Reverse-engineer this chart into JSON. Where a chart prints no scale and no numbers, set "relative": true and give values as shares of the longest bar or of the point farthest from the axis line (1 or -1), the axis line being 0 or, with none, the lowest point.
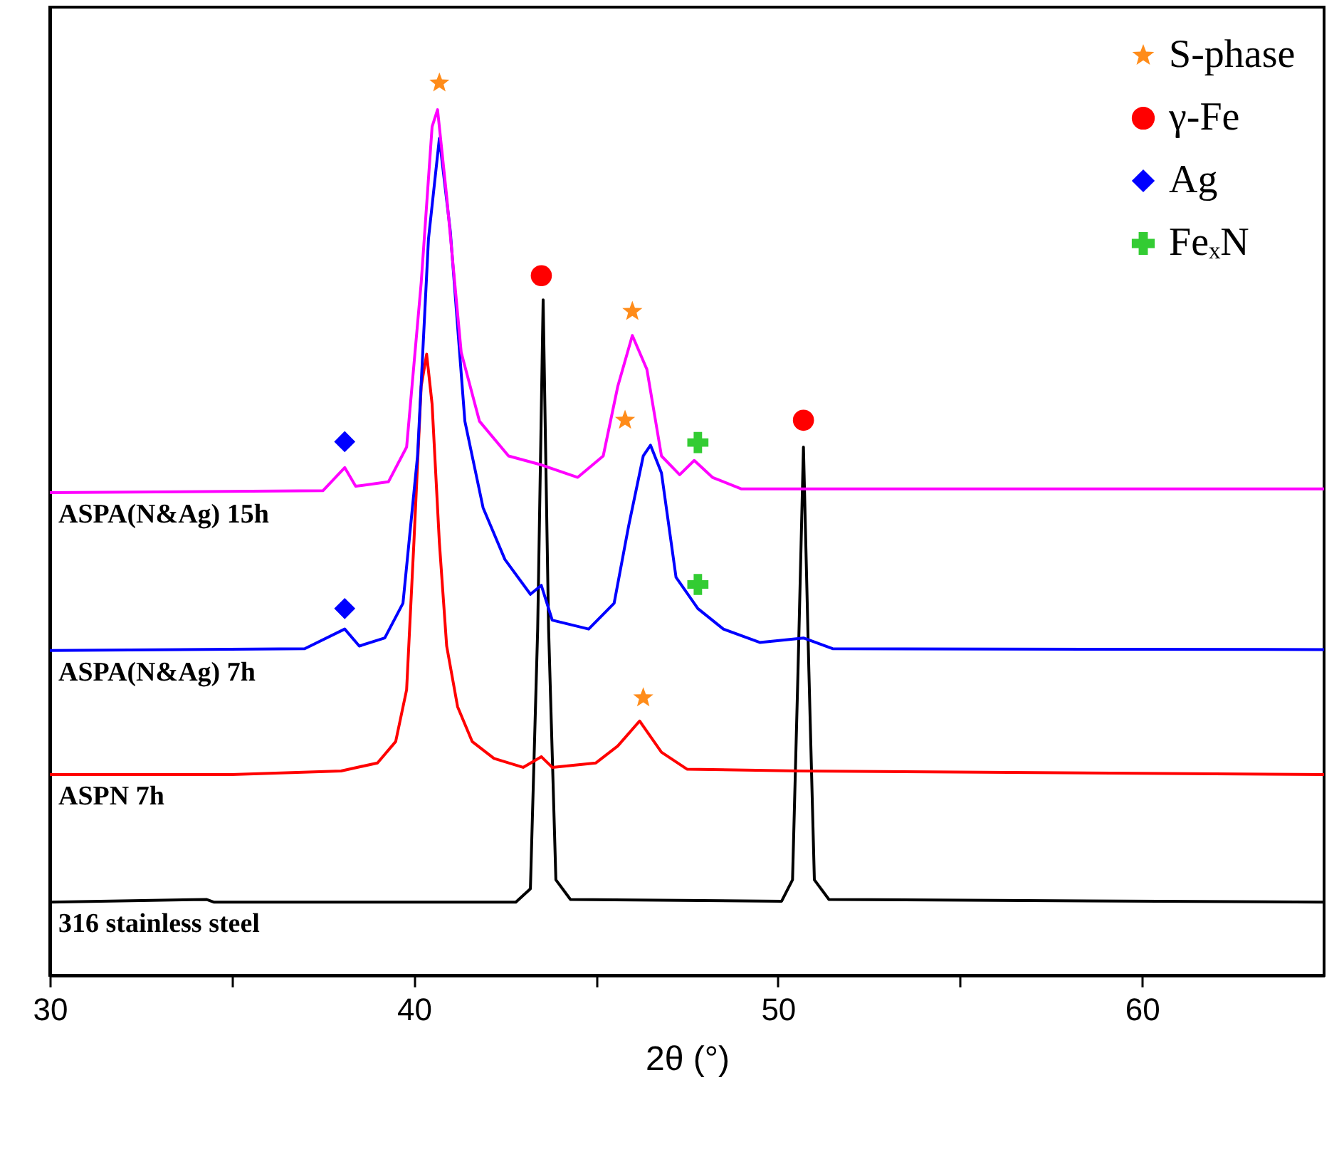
{
  "chart_data": {
    "type": "line",
    "relative": true,
    "xlabel": "2θ (°)",
    "xlim": [
      30,
      65
    ],
    "xticks": [
      30,
      {
        "value": 35,
        "label": null
      },
      40,
      {
        "value": 45,
        "label": null
      },
      50,
      {
        "value": 55,
        "label": null
      },
      60
    ],
    "tick_labels": "x",
    "legend": "top right",
    "grid": false,
    "series": [
      {
        "name": "316 stainless steel",
        "color": "#000000",
        "x": [
          30,
          34.3,
          34.5,
          42.8,
          43.2,
          43.4,
          43.55,
          43.7,
          43.9,
          44.3,
          50.1,
          50.4,
          50.55,
          50.7,
          50.85,
          51.0,
          51.4,
          65
        ],
        "values": [
          0.082,
          0.085,
          0.082,
          0.082,
          0.097,
          0.388,
          0.757,
          0.388,
          0.107,
          0.085,
          0.083,
          0.107,
          0.34,
          0.592,
          0.34,
          0.107,
          0.085,
          0.082
        ]
      },
      {
        "name": "ASPN 7h",
        "color": "#ff0000",
        "x": [
          30,
          35,
          38,
          39,
          39.5,
          39.8,
          40,
          40.2,
          40.35,
          40.5,
          40.7,
          40.9,
          41.2,
          41.6,
          42.2,
          43,
          43.5,
          43.8,
          45,
          45.6,
          46.2,
          46.8,
          47.5,
          50.6,
          65
        ],
        "values": [
          0.225,
          0.225,
          0.229,
          0.238,
          0.262,
          0.32,
          0.485,
          0.66,
          0.696,
          0.64,
          0.485,
          0.369,
          0.301,
          0.262,
          0.243,
          0.233,
          0.245,
          0.233,
          0.238,
          0.257,
          0.285,
          0.25,
          0.231,
          0.229,
          0.225
        ]
      },
      {
        "name": "ASPA(N&Ag) 7h",
        "color": "#0000ff",
        "x": [
          30,
          37,
          38.1,
          38.5,
          39.2,
          39.7,
          40.1,
          40.4,
          40.7,
          41,
          41.4,
          41.9,
          42.5,
          43.2,
          43.5,
          43.8,
          44.8,
          45.5,
          45.9,
          46.3,
          46.5,
          46.8,
          47.2,
          47.8,
          48.5,
          49.5,
          50.7,
          51.5,
          65
        ],
        "values": [
          0.364,
          0.366,
          0.388,
          0.369,
          0.378,
          0.417,
          0.582,
          0.825,
          0.938,
          0.834,
          0.621,
          0.524,
          0.466,
          0.427,
          0.437,
          0.398,
          0.388,
          0.417,
          0.504,
          0.582,
          0.594,
          0.563,
          0.446,
          0.411,
          0.388,
          0.373,
          0.378,
          0.366,
          0.365
        ]
      },
      {
        "name": "ASPA(N&Ag) 15h",
        "color": "#ff00ff",
        "x": [
          30,
          37.5,
          38.1,
          38.4,
          39.3,
          39.8,
          40.2,
          40.5,
          40.65,
          40.9,
          41.3,
          41.8,
          42.6,
          43.5,
          44.5,
          45.2,
          45.6,
          46,
          46.4,
          46.8,
          47.3,
          47.7,
          48.2,
          49,
          65
        ],
        "values": [
          0.541,
          0.543,
          0.569,
          0.548,
          0.553,
          0.592,
          0.776,
          0.951,
          0.97,
          0.873,
          0.698,
          0.621,
          0.582,
          0.572,
          0.558,
          0.582,
          0.66,
          0.717,
          0.679,
          0.582,
          0.561,
          0.577,
          0.558,
          0.545,
          0.545
        ]
      },
      {
        "name": "S-phase",
        "type": "scatter",
        "marker": "star",
        "color": "#ff8c1a",
        "x": [
          40.7,
          46.0,
          45.8,
          46.3
        ],
        "values": [
          1.0,
          0.744,
          0.622,
          0.311
        ]
      },
      {
        "name": "γ-Fe",
        "type": "scatter",
        "marker": "circle",
        "color": "#ff0000",
        "x": [
          43.5,
          50.7
        ],
        "values": [
          0.784,
          0.622
        ]
      },
      {
        "name": "Ag",
        "type": "scatter",
        "marker": "diamond",
        "color": "#0000ff",
        "x": [
          38.1,
          38.1
        ],
        "values": [
          0.598,
          0.411
        ]
      },
      {
        "name": "FeₓN",
        "type": "scatter",
        "marker": "cross",
        "color": "#33cc33",
        "x": [
          47.8,
          47.8
        ],
        "values": [
          0.597,
          0.438
        ]
      }
    ]
  }
}
